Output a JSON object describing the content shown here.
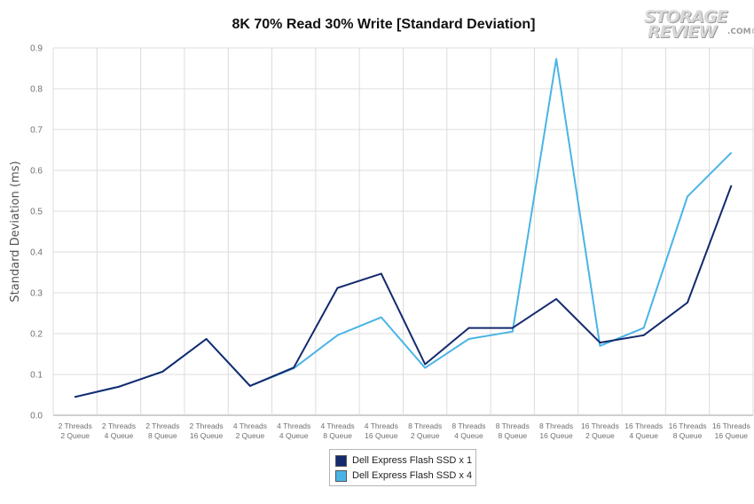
{
  "chart_data": {
    "type": "line",
    "title": "8K 70% Read 30% Write [Standard Deviation]",
    "xlabel": "",
    "ylabel": "Standard Deviation (ms)",
    "ylim": [
      0,
      0.9
    ],
    "yticks": [
      "0.0",
      "0.1",
      "0.2",
      "0.3",
      "0.4",
      "0.5",
      "0.6",
      "0.7",
      "0.8",
      "0.9"
    ],
    "grid": true,
    "legend_position": "bottom",
    "categories": [
      [
        "2 Threads",
        "2 Queue"
      ],
      [
        "2 Threads",
        "4 Queue"
      ],
      [
        "2 Threads",
        "8 Queue"
      ],
      [
        "2 Threads",
        "16 Queue"
      ],
      [
        "4 Threads",
        "2 Queue"
      ],
      [
        "4 Threads",
        "4 Queue"
      ],
      [
        "4 Threads",
        "8 Queue"
      ],
      [
        "4 Threads",
        "16 Queue"
      ],
      [
        "8 Threads",
        "2 Queue"
      ],
      [
        "8 Threads",
        "4 Queue"
      ],
      [
        "8 Threads",
        "8 Queue"
      ],
      [
        "8 Threads",
        "16 Queue"
      ],
      [
        "16 Threads",
        "2 Queue"
      ],
      [
        "16 Threads",
        "4 Queue"
      ],
      [
        "16 Threads",
        "8 Queue"
      ],
      [
        "16 Threads",
        "16 Queue"
      ]
    ],
    "series": [
      {
        "name": "Dell Express Flash SSD x 1",
        "color": "#142a6e",
        "values": [
          0.045,
          0.07,
          0.107,
          0.187,
          0.072,
          0.117,
          0.312,
          0.347,
          0.125,
          0.214,
          0.214,
          0.285,
          0.178,
          0.196,
          0.276,
          0.562
        ]
      },
      {
        "name": "Dell Express Flash SSD x 4",
        "color": "#4ab4e6",
        "values": [
          0.045,
          0.07,
          0.107,
          0.187,
          0.072,
          0.115,
          0.196,
          0.24,
          0.116,
          0.187,
          0.205,
          0.873,
          0.17,
          0.214,
          0.536,
          0.643
        ]
      }
    ]
  },
  "logo": {
    "line1": "STORAGE",
    "line2": "REVIEW",
    "suffix": ".COM®"
  }
}
